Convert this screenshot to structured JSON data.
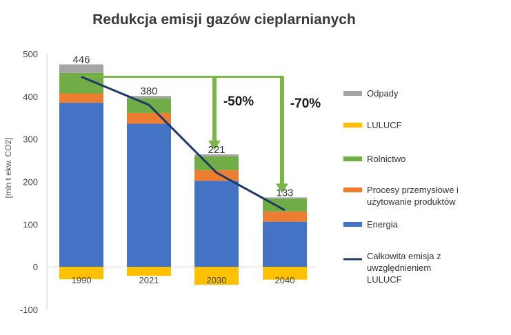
{
  "chart_data": {
    "type": "bar",
    "stacked": true,
    "title": "Redukcja emisji gazów cieplarnianych",
    "ylabel": "[mln t ekw. CO2]",
    "ylim": [
      -100,
      500
    ],
    "yticks": [
      "500",
      "400",
      "300",
      "200",
      "100",
      "0",
      "-100"
    ],
    "categories": [
      "1990",
      "2021",
      "2030",
      "2040"
    ],
    "series": [
      {
        "name": "Energia",
        "color": "#4472C4",
        "values": [
          385,
          336,
          202,
          106
        ]
      },
      {
        "name": "Procesy przemysłowe i użytowanie produktów",
        "color": "#ED7D31",
        "values": [
          22,
          25,
          25,
          24
        ]
      },
      {
        "name": "Rolnictwo",
        "color": "#70AD47",
        "values": [
          48,
          34,
          32,
          30
        ]
      },
      {
        "name": "Odpady",
        "color": "#A5A5A5",
        "values": [
          20,
          6,
          5,
          3
        ]
      },
      {
        "name": "LULUCF",
        "color": "#FFC000",
        "values": [
          -29,
          -21,
          -42,
          -30
        ]
      }
    ],
    "line": {
      "name": "Całkowita emisja z uwzględnieniem LULUCF",
      "color": "#203864",
      "values": [
        446,
        380,
        221,
        133
      ]
    },
    "total_labels": [
      "446",
      "380",
      "221",
      "133"
    ],
    "reduction_annotations": [
      {
        "label": "-50%",
        "target": "2030"
      },
      {
        "label": "-70%",
        "target": "2040"
      }
    ],
    "annotation_color": "#7AB648",
    "legend_position": "right",
    "grid": false
  }
}
